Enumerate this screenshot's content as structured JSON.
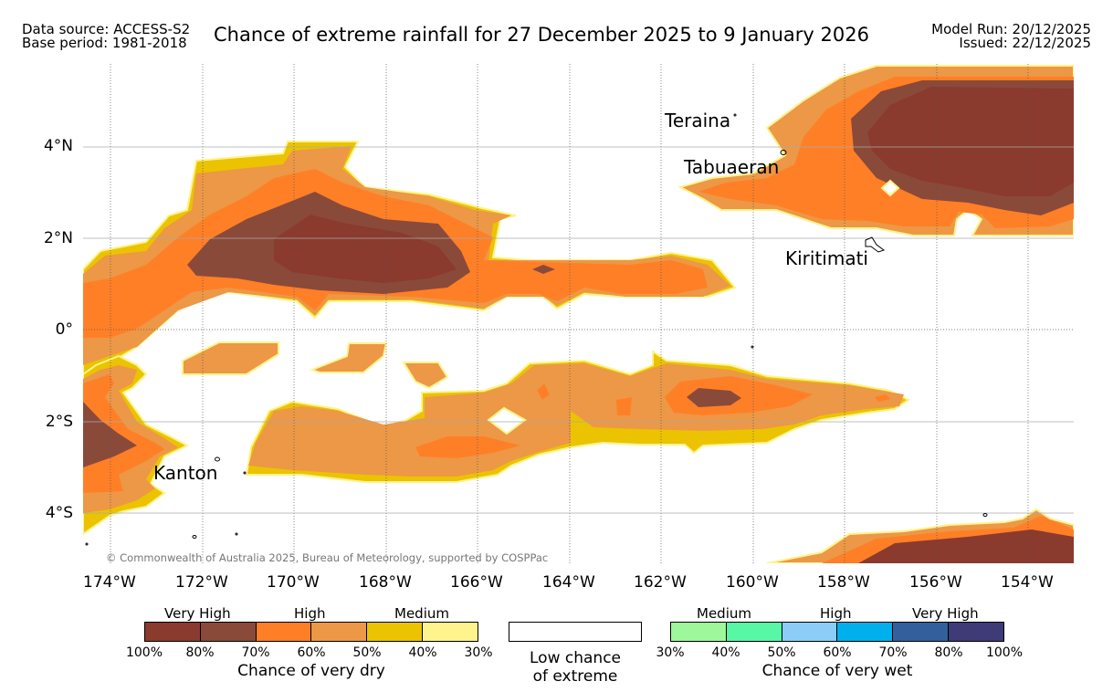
{
  "header": {
    "data_source": "Data source: ACCESS-S2",
    "base_period": "Base period: 1981-2018",
    "title": "Chance of extreme rainfall for 27 December 2025 to 9 January 2026",
    "model_run": "Model Run: 20/12/2025",
    "issued": "Issued: 22/12/2025"
  },
  "map": {
    "lat_labels": [
      "4°N",
      "2°N",
      "0°",
      "2°S",
      "4°S"
    ],
    "lon_labels": [
      "174°W",
      "172°W",
      "170°W",
      "168°W",
      "166°W",
      "164°W",
      "162°W",
      "160°W",
      "158°W",
      "156°W",
      "154°W"
    ],
    "places": [
      "Teraina",
      "Tabuaeran",
      "Kiritimati",
      "Kanton"
    ],
    "copyright": "© Commonwealth of Australia 2025, Bureau of Meteorology, supported by COSPPac"
  },
  "legend": {
    "dry": {
      "groups": [
        "Very High",
        "High",
        "Medium"
      ],
      "colors": [
        "#8b3a2e",
        "#8a4a3a",
        "#ff7f27",
        "#ec9846",
        "#ebc300",
        "#fef38c"
      ],
      "ticks": [
        "100%",
        "80%",
        "70%",
        "60%",
        "50%",
        "40%",
        "30%"
      ],
      "caption": "Chance of very dry"
    },
    "low": {
      "caption_line1": "Low chance",
      "caption_line2": "of extreme"
    },
    "wet": {
      "groups": [
        "Medium",
        "High",
        "Very High"
      ],
      "colors": [
        "#9ef79a",
        "#57f7a6",
        "#8ccdf7",
        "#00b0ec",
        "#33609c",
        "#3e3b78"
      ],
      "ticks": [
        "30%",
        "40%",
        "50%",
        "60%",
        "70%",
        "80%",
        "100%"
      ],
      "caption": "Chance of very wet"
    }
  }
}
